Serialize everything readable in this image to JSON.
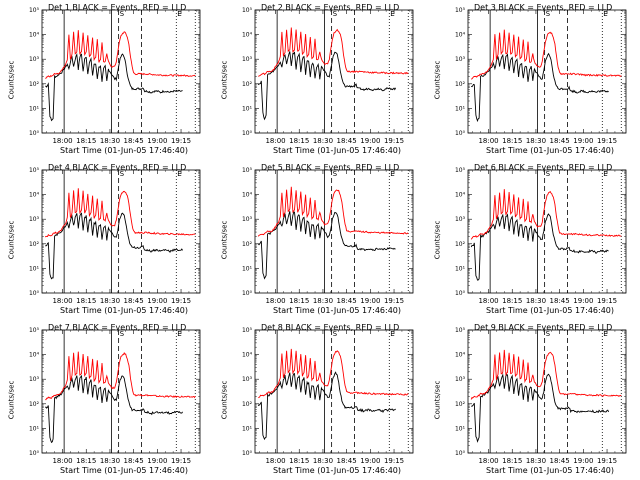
{
  "chart_data": [
    {
      "type": "line",
      "title": "Det 1  BLACK = Events, RED = LLD",
      "xlabel": "Start Time (01-Jun-05 17:46:40)",
      "ylabel": "Counts/sec"
    },
    {
      "type": "line",
      "title": "Det 2  BLACK = Events, RED = LLD",
      "xlabel": "Start Time (01-Jun-05 17:46:40)",
      "ylabel": "Counts/sec"
    },
    {
      "type": "line",
      "title": "Det 3  BLACK = Events, RED = LLD",
      "xlabel": "Start Time (01-Jun-05 17:46:40)",
      "ylabel": "Counts/sec"
    },
    {
      "type": "line",
      "title": "Det 4  BLACK = Events, RED = LLD",
      "xlabel": "Start Time (01-Jun-05 17:46:40)",
      "ylabel": "Counts/sec"
    },
    {
      "type": "line",
      "title": "Det 5  BLACK = Events, RED = LLD",
      "xlabel": "Start Time (01-Jun-05 17:46:40)",
      "ylabel": "Counts/sec"
    },
    {
      "type": "line",
      "title": "Det 6  BLACK = Events, RED = LLD",
      "xlabel": "Start Time (01-Jun-05 17:46:40)",
      "ylabel": "Counts/sec"
    },
    {
      "type": "line",
      "title": "Det 7  BLACK = Events, RED = LLD",
      "xlabel": "Start Time (01-Jun-05 17:46:40)",
      "ylabel": "Counts/sec"
    },
    {
      "type": "line",
      "title": "Det 8  BLACK = Events, RED = LLD",
      "xlabel": "Start Time (01-Jun-05 17:46:40)",
      "ylabel": "Counts/sec"
    },
    {
      "type": "line",
      "title": "Det 9  BLACK = Events, RED = LLD",
      "xlabel": "Start Time (01-Jun-05 17:46:40)",
      "ylabel": "Counts/sec"
    }
  ],
  "axes": {
    "x_tick_labels": [
      "18:00",
      "18:15",
      "18:30",
      "18:45",
      "19:00",
      "19:15"
    ],
    "x_tick_minutes": [
      0,
      15,
      30,
      45,
      60,
      75
    ],
    "x_range_minutes": [
      -13,
      87
    ],
    "y_tick_labels": [
      "10⁰",
      "10¹",
      "10²",
      "10³",
      "10⁴",
      "10⁵"
    ],
    "y_range_log10": [
      0,
      5
    ],
    "scale": "log"
  },
  "markers": [
    {
      "label": "",
      "style": "solid",
      "minute": 1
    },
    {
      "label": "",
      "style": "solid",
      "minute": 31
    },
    {
      "label": "S",
      "style": "dashed",
      "minute": 35.5
    },
    {
      "label": "",
      "style": "dashed",
      "minute": 50
    },
    {
      "label": "E",
      "style": "dotted",
      "minute": 72
    },
    {
      "label": "",
      "style": "dotted",
      "minute": 84
    }
  ],
  "series_colors": {
    "events": "#000000",
    "lld": "#ff0000"
  },
  "series_profiles": {
    "events_log10_samples": [
      [
        -11,
        1.9
      ],
      [
        -10,
        1.9
      ],
      [
        -9,
        2.0
      ],
      [
        -8,
        0.7
      ],
      [
        -7,
        0.5
      ],
      [
        -6,
        0.6
      ],
      [
        -5,
        2.3
      ],
      [
        -4,
        2.3
      ],
      [
        -3,
        2.35
      ],
      [
        -2,
        2.4
      ],
      [
        -1,
        2.45
      ],
      [
        0,
        2.5
      ],
      [
        1,
        2.6
      ],
      [
        2,
        2.7
      ],
      [
        3,
        2.8
      ],
      [
        4,
        2.6
      ],
      [
        5,
        2.9
      ],
      [
        6,
        3.1
      ],
      [
        7,
        2.7
      ],
      [
        8,
        3.0
      ],
      [
        9,
        3.2
      ],
      [
        10,
        2.6
      ],
      [
        11,
        3.1
      ],
      [
        12,
        3.2
      ],
      [
        13,
        2.5
      ],
      [
        14,
        3.0
      ],
      [
        15,
        3.1
      ],
      [
        16,
        2.4
      ],
      [
        17,
        2.9
      ],
      [
        18,
        3.0
      ],
      [
        19,
        2.3
      ],
      [
        20,
        2.8
      ],
      [
        21,
        2.8
      ],
      [
        22,
        2.2
      ],
      [
        23,
        2.7
      ],
      [
        24,
        2.7
      ],
      [
        25,
        2.1
      ],
      [
        26,
        2.6
      ],
      [
        27,
        2.7
      ],
      [
        28,
        2.1
      ],
      [
        29,
        2.6
      ],
      [
        30,
        2.5
      ],
      [
        31,
        2.4
      ],
      [
        32,
        2.3
      ],
      [
        33,
        2.2
      ],
      [
        34,
        2.2
      ],
      [
        35,
        2.5
      ],
      [
        36,
        2.9
      ],
      [
        37,
        3.1
      ],
      [
        38,
        3.2
      ],
      [
        39,
        3.1
      ],
      [
        40,
        2.8
      ],
      [
        41,
        2.4
      ],
      [
        42,
        2.1
      ],
      [
        43,
        1.9
      ],
      [
        44,
        1.8
      ],
      [
        45,
        1.8
      ],
      [
        46,
        1.8
      ],
      [
        48,
        1.8
      ],
      [
        50,
        1.8
      ],
      [
        51,
        1.85
      ],
      [
        52,
        1.7
      ],
      [
        54,
        1.7
      ],
      [
        56,
        1.65
      ],
      [
        58,
        1.7
      ],
      [
        60,
        1.7
      ],
      [
        62,
        1.65
      ],
      [
        64,
        1.7
      ],
      [
        66,
        1.7
      ],
      [
        68,
        1.65
      ],
      [
        70,
        1.7
      ],
      [
        72,
        1.7
      ],
      [
        74,
        1.7
      ],
      [
        76,
        1.7
      ]
    ],
    "lld_log10_samples": [
      [
        -11,
        2.2
      ],
      [
        -9,
        2.3
      ],
      [
        -7,
        2.3
      ],
      [
        -5,
        2.4
      ],
      [
        -3,
        2.4
      ],
      [
        -1,
        2.5
      ],
      [
        0,
        2.6
      ],
      [
        1,
        2.7
      ],
      [
        2,
        2.8
      ],
      [
        3,
        3.0
      ],
      [
        4,
        4.0
      ],
      [
        5,
        3.0
      ],
      [
        6,
        3.2
      ],
      [
        7,
        4.1
      ],
      [
        8,
        3.2
      ],
      [
        9,
        3.3
      ],
      [
        10,
        4.2
      ],
      [
        11,
        3.2
      ],
      [
        12,
        3.3
      ],
      [
        13,
        4.1
      ],
      [
        14,
        3.2
      ],
      [
        15,
        3.3
      ],
      [
        16,
        4.0
      ],
      [
        17,
        3.1
      ],
      [
        18,
        3.2
      ],
      [
        19,
        3.9
      ],
      [
        20,
        3.0
      ],
      [
        21,
        3.1
      ],
      [
        22,
        3.8
      ],
      [
        23,
        2.9
      ],
      [
        24,
        3.0
      ],
      [
        25,
        3.7
      ],
      [
        26,
        2.9
      ],
      [
        27,
        2.9
      ],
      [
        28,
        3.2
      ],
      [
        29,
        2.9
      ],
      [
        30,
        2.8
      ],
      [
        31,
        2.7
      ],
      [
        32,
        2.7
      ],
      [
        33,
        2.7
      ],
      [
        34,
        2.9
      ],
      [
        35,
        3.3
      ],
      [
        36,
        3.7
      ],
      [
        37,
        3.95
      ],
      [
        38,
        4.05
      ],
      [
        39,
        4.1
      ],
      [
        40,
        4.05
      ],
      [
        41,
        3.9
      ],
      [
        42,
        3.6
      ],
      [
        43,
        3.1
      ],
      [
        44,
        2.7
      ],
      [
        45,
        2.45
      ],
      [
        46,
        2.4
      ],
      [
        48,
        2.4
      ],
      [
        50,
        2.4
      ],
      [
        52,
        2.4
      ],
      [
        54,
        2.4
      ],
      [
        56,
        2.38
      ],
      [
        58,
        2.38
      ],
      [
        60,
        2.36
      ],
      [
        62,
        2.36
      ],
      [
        64,
        2.35
      ],
      [
        66,
        2.35
      ],
      [
        68,
        2.35
      ],
      [
        70,
        2.34
      ],
      [
        72,
        2.34
      ],
      [
        74,
        2.34
      ],
      [
        76,
        2.34
      ],
      [
        78,
        2.33
      ],
      [
        80,
        2.33
      ],
      [
        82,
        2.33
      ],
      [
        84,
        2.33
      ]
    ]
  }
}
